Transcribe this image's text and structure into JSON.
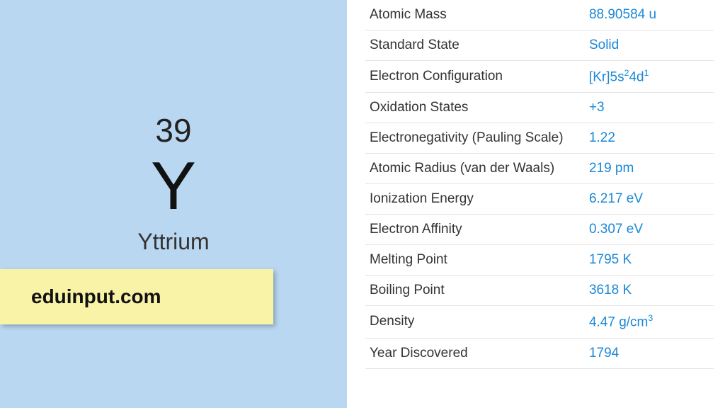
{
  "element": {
    "atomic_number": "39",
    "symbol": "Y",
    "name": "Yttrium"
  },
  "watermark": "eduinput.com",
  "colors": {
    "left_bg": "#b9d7f1",
    "watermark_bg": "#f9f3a8",
    "value_color": "#1b88d6",
    "label_color": "#333333",
    "border_color": "#e3e3e3"
  },
  "properties": [
    {
      "label": "Atomic Mass",
      "value": "88.90584 u"
    },
    {
      "label": "Standard State",
      "value": "Solid"
    },
    {
      "label": "Electron Configuration",
      "value_html": "[Kr]5s<sup>2</sup>4d<sup>1</sup>"
    },
    {
      "label": "Oxidation States",
      "value": "+3"
    },
    {
      "label": "Electronegativity (Pauling Scale)",
      "value": "1.22"
    },
    {
      "label": "Atomic Radius (van der Waals)",
      "value": "219 pm"
    },
    {
      "label": "Ionization Energy",
      "value": "6.217 eV"
    },
    {
      "label": "Electron Affinity",
      "value": "0.307 eV"
    },
    {
      "label": "Melting Point",
      "value": "1795 K"
    },
    {
      "label": "Boiling Point",
      "value": "3618 K"
    },
    {
      "label": "Density",
      "value_html": "4.47 g/cm<sup>3</sup>"
    },
    {
      "label": "Year Discovered",
      "value": "1794"
    }
  ]
}
